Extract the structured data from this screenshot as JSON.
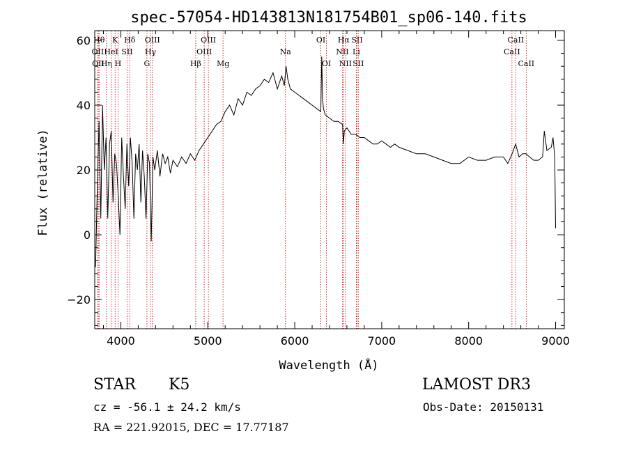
{
  "chart_data": {
    "type": "line",
    "title": "spec-57054-HD143813N181754B01_sp06-140.fits",
    "xlabel": "Wavelength (Å)",
    "ylabel": "Flux (relative)",
    "xlim": [
      3700,
      9100
    ],
    "ylim": [
      -29,
      63
    ],
    "x_ticks": [
      4000,
      5000,
      6000,
      7000,
      8000,
      9000
    ],
    "y_ticks": [
      -20,
      0,
      20,
      40,
      60
    ],
    "grid": false,
    "series": [
      {
        "x": [
          3710,
          3730,
          3750,
          3770,
          3790,
          3810,
          3830,
          3850,
          3870,
          3890,
          3910,
          3930,
          3950,
          3970,
          3990,
          4010,
          4030,
          4050,
          4070,
          4090,
          4110,
          4130,
          4150,
          4170,
          4190,
          4210,
          4230,
          4250,
          4270,
          4290,
          4310,
          4330,
          4350,
          4370,
          4390,
          4420,
          4450,
          4480,
          4510,
          4540,
          4570,
          4600,
          4650,
          4700,
          4750,
          4800,
          4850,
          4900,
          4950,
          5000,
          5050,
          5100,
          5150,
          5200,
          5250,
          5300,
          5350,
          5400,
          5450,
          5500,
          5550,
          5600,
          5650,
          5700,
          5750,
          5800,
          5850,
          5880,
          5900,
          5920,
          5950,
          6000,
          6050,
          6100,
          6150,
          6200,
          6250,
          6300,
          6310,
          6320,
          6330,
          6350,
          6400,
          6450,
          6500,
          6550,
          6560,
          6570,
          6600,
          6650,
          6700,
          6750,
          6800,
          6850,
          6900,
          6950,
          7000,
          7050,
          7100,
          7150,
          7200,
          7300,
          7400,
          7500,
          7600,
          7700,
          7800,
          7900,
          8000,
          8100,
          8200,
          8300,
          8400,
          8450,
          8500,
          8540,
          8580,
          8620,
          8660,
          8700,
          8750,
          8800,
          8850,
          8870,
          8900,
          8950,
          8970,
          8990,
          9000
        ],
        "y": [
          -10,
          15,
          35,
          5,
          40,
          20,
          30,
          5,
          28,
          32,
          10,
          25,
          22,
          12,
          0,
          30,
          18,
          8,
          28,
          15,
          30,
          22,
          5,
          25,
          20,
          28,
          10,
          26,
          18,
          5,
          25,
          22,
          -2,
          24,
          20,
          26,
          18,
          25,
          22,
          24,
          19,
          23,
          21,
          24,
          22,
          25,
          23,
          26,
          28,
          30,
          32,
          34,
          35,
          38,
          40,
          37,
          42,
          40,
          44,
          43,
          45,
          46,
          48,
          47,
          50,
          45,
          49,
          46,
          52,
          48,
          45,
          44,
          43,
          42,
          41,
          40,
          39,
          38,
          55,
          42,
          39,
          37,
          36,
          35,
          35,
          34,
          28,
          32,
          33,
          31,
          31,
          30,
          30,
          29,
          28,
          28,
          29,
          28,
          27,
          28,
          27,
          26,
          25,
          25,
          24,
          23,
          22,
          22,
          24,
          23,
          23,
          24,
          24,
          22,
          25,
          28,
          24,
          25,
          25,
          24,
          23,
          23,
          24,
          32,
          26,
          27,
          30,
          24,
          2
        ]
      }
    ],
    "lines": [
      {
        "wl": 3750,
        "label": "Hθ",
        "row": 1
      },
      {
        "wl": 3735,
        "label": "OII",
        "row": 2
      },
      {
        "wl": 3740,
        "label": "OII",
        "row": 3
      },
      {
        "wl": 3835,
        "label": "Hη",
        "row": 3
      },
      {
        "wl": 3889,
        "label": "HeI",
        "row": 2
      },
      {
        "wl": 3934,
        "label": "K",
        "row": 1
      },
      {
        "wl": 3968,
        "label": "H",
        "row": 3
      },
      {
        "wl": 4072,
        "label": "SII",
        "row": 2
      },
      {
        "wl": 4102,
        "label": "Hδ",
        "row": 1
      },
      {
        "wl": 4300,
        "label": "G",
        "row": 3
      },
      {
        "wl": 4341,
        "label": "Hγ",
        "row": 2
      },
      {
        "wl": 4363,
        "label": "OIII",
        "row": 1
      },
      {
        "wl": 4861,
        "label": "Hβ",
        "row": 3
      },
      {
        "wl": 4959,
        "label": "OIII",
        "row": 2
      },
      {
        "wl": 5007,
        "label": "OIII",
        "row": 1
      },
      {
        "wl": 5175,
        "label": "Mg",
        "row": 3
      },
      {
        "wl": 5893,
        "label": "Na",
        "row": 2
      },
      {
        "wl": 6300,
        "label": "OI",
        "row": 1
      },
      {
        "wl": 6364,
        "label": "OI",
        "row": 3
      },
      {
        "wl": 6548,
        "label": "NII",
        "row": 2
      },
      {
        "wl": 6563,
        "label": "Hα",
        "row": 1
      },
      {
        "wl": 6584,
        "label": "NII",
        "row": 3
      },
      {
        "wl": 6708,
        "label": "Li",
        "row": 2
      },
      {
        "wl": 6717,
        "label": "SII",
        "row": 1
      },
      {
        "wl": 6731,
        "label": "SII",
        "row": 3
      },
      {
        "wl": 8498,
        "label": "CaII",
        "row": 2
      },
      {
        "wl": 8542,
        "label": "CaII",
        "row": 1
      },
      {
        "wl": 8662,
        "label": "CaII",
        "row": 3
      }
    ]
  },
  "info": {
    "class_label": "STAR",
    "subclass": "K5",
    "survey": "LAMOST DR3",
    "cz": "cz = -56.1 ± 24.2 km/s",
    "obs_date": "Obs-Date: 20150131",
    "coords": "RA = 221.92015, DEC =  17.77187"
  },
  "colors": {
    "line_marker": "#cc0000",
    "spectrum": "#000000",
    "axes": "#000000"
  }
}
